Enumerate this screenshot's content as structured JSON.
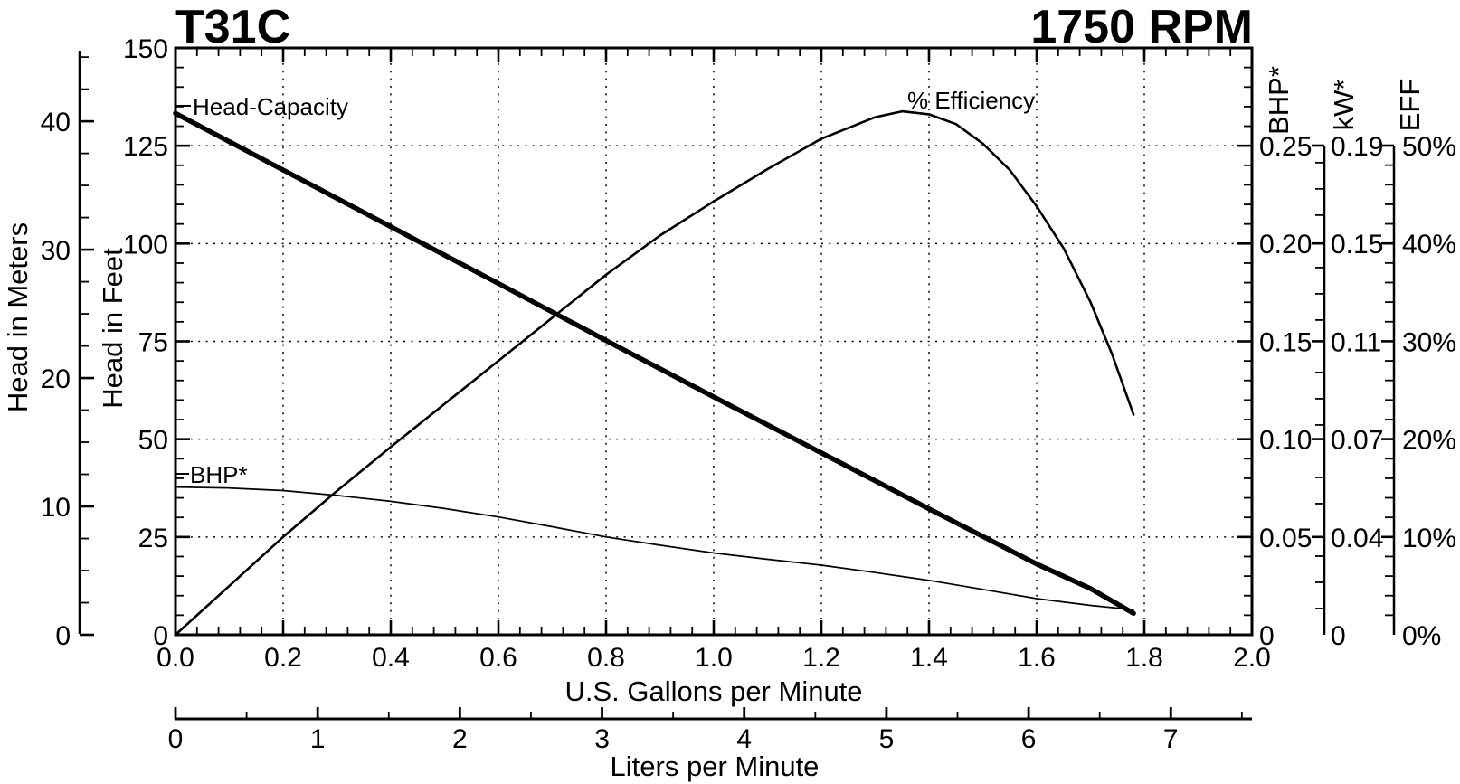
{
  "title": "T31C",
  "rpm": "1750 RPM",
  "curve_labels": {
    "head_capacity": "Head-Capacity",
    "efficiency": "% Efficiency",
    "bhp": "BHP*"
  },
  "chart_data": {
    "type": "line",
    "title": "T31C",
    "subtitle": "1750 RPM",
    "grid": true,
    "axes": {
      "gpm": {
        "title": "U.S. Gallons per Minute",
        "min": 0,
        "max": 2.0,
        "minor_step": 0.04,
        "tick_labels": [
          "0.0",
          "0.2",
          "0.4",
          "0.6",
          "0.8",
          "1.0",
          "1.2",
          "1.4",
          "1.6",
          "1.8",
          "2.0"
        ]
      },
      "liters": {
        "title": "Liters per Minute",
        "min": 0,
        "max": 7.5708,
        "minor_step": 0.5,
        "tick_labels": [
          "0",
          "1",
          "2",
          "3",
          "4",
          "5",
          "6",
          "7"
        ]
      },
      "feet": {
        "title": "Head in Feet",
        "min": 0,
        "max": 150,
        "minor_step": 5,
        "tick_labels": [
          "0",
          "25",
          "50",
          "75",
          "100",
          "125",
          "150"
        ]
      },
      "meters": {
        "title": "Head in Meters",
        "min": 0,
        "max": 45,
        "minor_step": 2.5,
        "tick_labels": [
          "0",
          "10",
          "20",
          "30",
          "40"
        ]
      },
      "bhp": {
        "title": "BHP*",
        "min": 0,
        "max": 0.25,
        "minor_step": 0.01,
        "tick_labels": [
          "0.25",
          "0.20",
          "0.15",
          "0.10",
          "0.05",
          "0"
        ]
      },
      "kw": {
        "title": "kW*",
        "min": 0,
        "max": 0.1865,
        "minor_step": 0.01,
        "tick_labels": [
          "0.19",
          "0.15",
          "0.11",
          "0.07",
          "0.04",
          "0"
        ]
      },
      "eff": {
        "title": "EFF",
        "min": 0,
        "max": 50,
        "minor_step": 2,
        "tick_labels": [
          "50%",
          "40%",
          "30%",
          "20%",
          "10%",
          "0%"
        ]
      }
    },
    "series": [
      {
        "name": "Head-Capacity",
        "axis": "feet",
        "x_axis": "gpm",
        "stroke_width": 5.5,
        "points": [
          [
            0,
            133.3
          ],
          [
            0.2,
            118.8
          ],
          [
            0.4,
            104.3
          ],
          [
            0.6,
            89.8
          ],
          [
            0.8,
            75.2
          ],
          [
            1.0,
            60.8
          ],
          [
            1.2,
            46.5
          ],
          [
            1.4,
            32.2
          ],
          [
            1.6,
            18.1
          ],
          [
            1.7,
            11.8
          ],
          [
            1.78,
            5.5
          ]
        ]
      },
      {
        "name": "% Efficiency",
        "axis": "eff",
        "x_axis": "gpm",
        "stroke_width": 2.6,
        "points": [
          [
            0,
            0
          ],
          [
            0.1,
            5.0
          ],
          [
            0.2,
            10.0
          ],
          [
            0.3,
            14.7
          ],
          [
            0.4,
            19.2
          ],
          [
            0.5,
            23.6
          ],
          [
            0.6,
            28.0
          ],
          [
            0.7,
            32.4
          ],
          [
            0.8,
            36.8
          ],
          [
            0.9,
            40.8
          ],
          [
            1.0,
            44.3
          ],
          [
            1.1,
            47.6
          ],
          [
            1.2,
            50.7
          ],
          [
            1.3,
            52.9
          ],
          [
            1.35,
            53.5
          ],
          [
            1.4,
            53.2
          ],
          [
            1.45,
            52.2
          ],
          [
            1.5,
            50.2
          ],
          [
            1.55,
            47.5
          ],
          [
            1.6,
            43.8
          ],
          [
            1.65,
            39.5
          ],
          [
            1.7,
            34.0
          ],
          [
            1.74,
            28.7
          ],
          [
            1.78,
            22.5
          ]
        ]
      },
      {
        "name": "BHP*",
        "axis": "bhp",
        "x_axis": "gpm",
        "stroke_width": 1.7,
        "points": [
          [
            0,
            0.0755
          ],
          [
            0.1,
            0.075
          ],
          [
            0.2,
            0.0737
          ],
          [
            0.3,
            0.0712
          ],
          [
            0.4,
            0.0682
          ],
          [
            0.5,
            0.0645
          ],
          [
            0.6,
            0.0602
          ],
          [
            0.7,
            0.0552
          ],
          [
            0.8,
            0.05
          ],
          [
            0.9,
            0.0458
          ],
          [
            1.0,
            0.0418
          ],
          [
            1.1,
            0.0386
          ],
          [
            1.2,
            0.0356
          ],
          [
            1.3,
            0.0318
          ],
          [
            1.4,
            0.0278
          ],
          [
            1.5,
            0.0232
          ],
          [
            1.6,
            0.0185
          ],
          [
            1.7,
            0.015
          ],
          [
            1.78,
            0.0128
          ]
        ]
      }
    ],
    "colors": {
      "ink": "#000000",
      "background": "#ffffff"
    }
  }
}
